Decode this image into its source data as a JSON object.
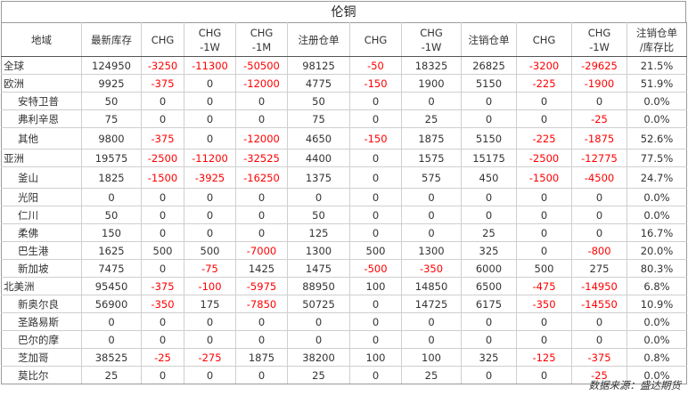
{
  "title": "伦铜",
  "headers": [
    "地域",
    "最新库存",
    "CHG",
    "CHG\n-1W",
    "CHG\n-1M",
    "注册仓单",
    "CHG",
    "CHG\n-1W",
    "注销仓单",
    "CHG",
    "CHG\n-1W",
    "注销仓单\n/库存比"
  ],
  "rows": [
    {
      "name": "全球",
      "level": "region",
      "values": [
        "124950",
        "-3250",
        "-11300",
        "-50500",
        "98125",
        "-50",
        "18325",
        "26825",
        "-3200",
        "-29625",
        "21.5%"
      ]
    },
    {
      "name": "欧洲",
      "level": "region",
      "values": [
        "9925",
        "-375",
        "0",
        "-12000",
        "4775",
        "-150",
        "1900",
        "5150",
        "-225",
        "-1900",
        "51.9%"
      ]
    },
    {
      "name": "安特卫普",
      "level": "sub",
      "values": [
        "50",
        "0",
        "0",
        "0",
        "50",
        "0",
        "0",
        "0",
        "0",
        "0",
        "0.0%"
      ]
    },
    {
      "name": "弗利辛恩",
      "level": "sub",
      "values": [
        "75",
        "0",
        "0",
        "0",
        "75",
        "0",
        "25",
        "0",
        "0",
        "-25",
        "0.0%"
      ]
    },
    {
      "name": "其他",
      "level": "sub",
      "values": [
        "9800",
        "-375",
        "0",
        "-12000",
        "4650",
        "-150",
        "1875",
        "5150",
        "-225",
        "-1875",
        "52.6%"
      ]
    },
    {
      "name": "亚洲",
      "level": "region",
      "values": [
        "19575",
        "-2500",
        "-11200",
        "-32525",
        "4400",
        "0",
        "1575",
        "15175",
        "-2500",
        "-12775",
        "77.5%"
      ]
    },
    {
      "name": "釜山",
      "level": "sub",
      "values": [
        "1825",
        "-1500",
        "-3925",
        "-16250",
        "1375",
        "0",
        "575",
        "450",
        "-1500",
        "-4500",
        "24.7%"
      ]
    },
    {
      "name": "光阳",
      "level": "sub",
      "values": [
        "0",
        "0",
        "0",
        "0",
        "0",
        "0",
        "0",
        "0",
        "0",
        "0",
        "0.0%"
      ]
    },
    {
      "name": "仁川",
      "level": "sub",
      "values": [
        "50",
        "0",
        "0",
        "0",
        "50",
        "0",
        "0",
        "0",
        "0",
        "0",
        "0.0%"
      ]
    },
    {
      "name": "柔佛",
      "level": "sub",
      "values": [
        "150",
        "0",
        "0",
        "0",
        "125",
        "0",
        "0",
        "25",
        "0",
        "0",
        "16.7%"
      ]
    },
    {
      "name": "巴生港",
      "level": "sub",
      "values": [
        "1625",
        "500",
        "500",
        "-7000",
        "1300",
        "500",
        "1300",
        "325",
        "0",
        "-800",
        "20.0%"
      ]
    },
    {
      "name": "新加坡",
      "level": "sub",
      "values": [
        "7475",
        "0",
        "-75",
        "1425",
        "1475",
        "-500",
        "-350",
        "6000",
        "500",
        "275",
        "80.3%"
      ]
    },
    {
      "name": "北美洲",
      "level": "region",
      "values": [
        "95450",
        "-375",
        "-100",
        "-5975",
        "88950",
        "100",
        "14850",
        "6500",
        "-475",
        "-14950",
        "6.8%"
      ]
    },
    {
      "name": "新奥尔良",
      "level": "sub",
      "values": [
        "56900",
        "-350",
        "175",
        "-7850",
        "50725",
        "0",
        "14725",
        "6175",
        "-350",
        "-14550",
        "10.9%"
      ]
    },
    {
      "name": "圣路易斯",
      "level": "sub",
      "values": [
        "0",
        "0",
        "0",
        "0",
        "0",
        "0",
        "0",
        "0",
        "0",
        "0",
        "0.0%"
      ]
    },
    {
      "name": "巴尔的摩",
      "level": "sub",
      "values": [
        "0",
        "0",
        "0",
        "0",
        "0",
        "0",
        "0",
        "0",
        "0",
        "0",
        "0.0%"
      ]
    },
    {
      "name": "芝加哥",
      "level": "sub",
      "values": [
        "38525",
        "-25",
        "-275",
        "1875",
        "38200",
        "100",
        "100",
        "325",
        "-125",
        "-375",
        "0.8%"
      ]
    },
    {
      "name": "莫比尔",
      "level": "sub",
      "values": [
        "25",
        "0",
        "0",
        "0",
        "25",
        "0",
        "25",
        "0",
        "0",
        "-25",
        "0.0%"
      ]
    }
  ],
  "source": "数据来源：盛达期货",
  "colors": {
    "negative": "#ff0000",
    "text": "#333333",
    "border": "#cfcfcf"
  }
}
